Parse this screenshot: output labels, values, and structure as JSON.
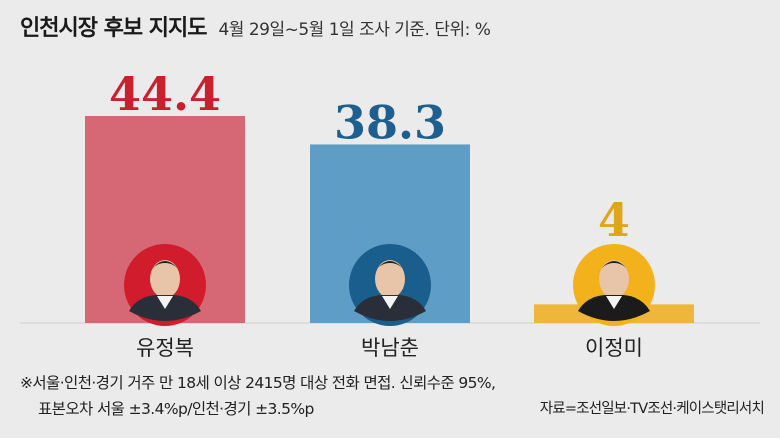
{
  "header": {
    "title": "인천시장 후보 지지도",
    "subtitle": "4월 29일~5월 1일 조사 기준. 단위: %"
  },
  "chart_data": {
    "type": "bar",
    "title": "인천시장 후보 지지도",
    "subtitle": "4월 29일~5월 1일 조사 기준. 단위: %",
    "categories": [
      "유정복",
      "박남춘",
      "이정미"
    ],
    "values": [
      44.4,
      38.3,
      4
    ],
    "value_labels": [
      "44.4",
      "38.3",
      "4"
    ],
    "colors": [
      "#d56874",
      "#5e9dc5",
      "#eeb63b"
    ],
    "label_colors": [
      "#c8202f",
      "#1f5f8f",
      "#e0a51a"
    ],
    "circle_colors": [
      "#d01c2c",
      "#1a5e8e",
      "#f3b21c"
    ],
    "ylim": [
      0,
      44.4
    ],
    "xlabel": "",
    "ylabel": "",
    "grid": false,
    "legend": "none"
  },
  "photos": [
    "candidate-photo-yoo",
    "candidate-photo-park",
    "candidate-photo-lee"
  ],
  "footer": {
    "note_line1": "※서울·인천·경기 거주 만 18세 이상 2415명 대상 전화 면접. 신뢰수준 95%,",
    "note_line2": "표본오차 서울 ±3.4%p/인천·경기 ±3.5%p",
    "source": "자료=조선일보·TV조선·케이스탯리서치"
  }
}
